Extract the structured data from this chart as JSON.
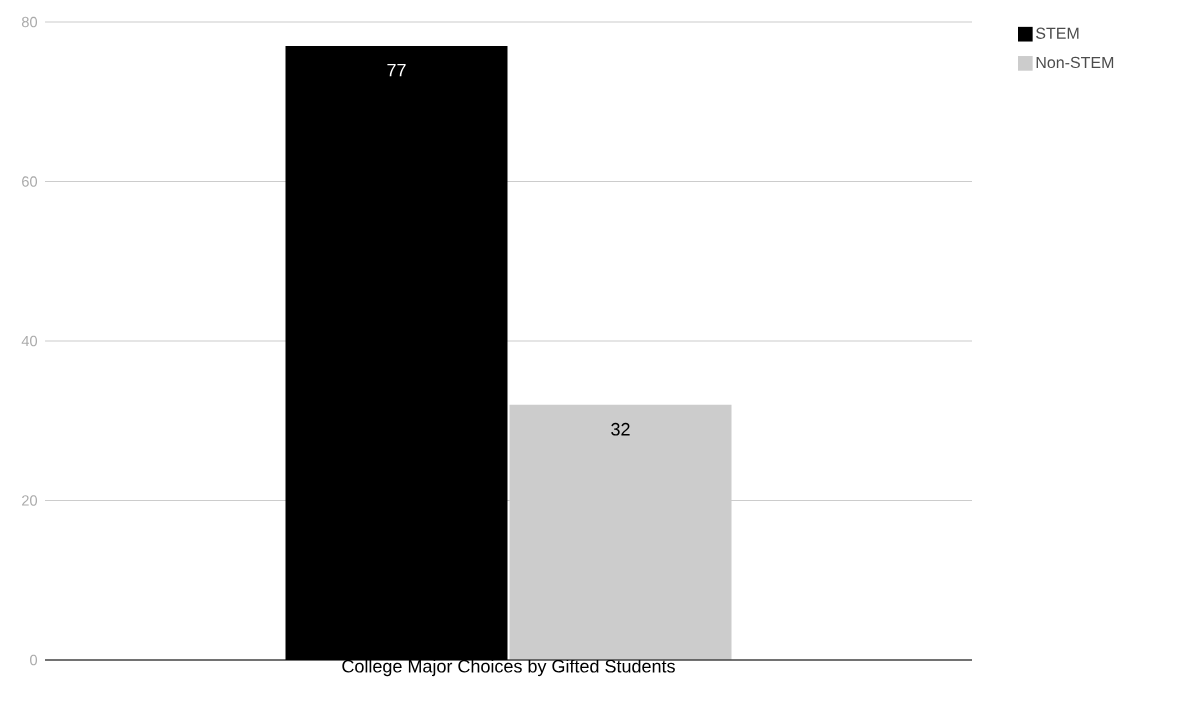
{
  "chart_data": {
    "type": "bar",
    "categories": [
      "College Major Choices by Gifted Students"
    ],
    "series": [
      {
        "name": "STEM",
        "color": "#000000",
        "values": [
          77
        ]
      },
      {
        "name": "Non-STEM",
        "color": "#cccccc",
        "values": [
          32
        ]
      }
    ],
    "ylim": [
      0,
      80
    ],
    "yticks": [
      0,
      20,
      40,
      60,
      80
    ],
    "grid": "y",
    "legend": "top right",
    "data_labels": true
  }
}
